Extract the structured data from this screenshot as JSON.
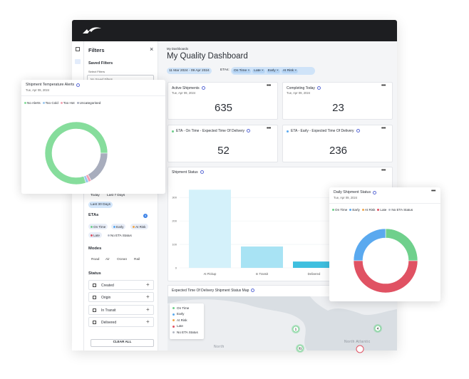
{
  "sidebar": {
    "title": "Filters",
    "close": "×",
    "saved_filters": "Saved Filters",
    "select_label": "Select Filters",
    "select_placeholder": "No Saved Filters",
    "date_options": [
      "Today",
      "Last 7 Days",
      "Last 30 Days"
    ],
    "etas": {
      "title": "ETAs",
      "count": 4,
      "options": [
        "On Time",
        "Early",
        "At Risk",
        "Late",
        "No ETA Status"
      ],
      "colors": [
        "#6fd08c",
        "#5aa9ef",
        "#f0a64a",
        "#e05263",
        "#b4b9c4"
      ]
    },
    "modes": {
      "title": "Modes",
      "options": [
        "Road",
        "Air",
        "Ocean",
        "Rail"
      ]
    },
    "status": {
      "title": "Status",
      "options": [
        "Created",
        "Origin",
        "In Transit",
        "Delivered"
      ]
    },
    "clear": "CLEAR ALL"
  },
  "header": {
    "breadcrumb": "My Dashboards",
    "title": "My Quality Dashboard"
  },
  "filters": {
    "date": "11 Mar 2024 - 09 Apr 2024",
    "etas_label": "ETAs:",
    "etas": [
      "On Time",
      "Late",
      "Early",
      "At Risk"
    ]
  },
  "cards": [
    {
      "title": "Active Shipments",
      "date": "Tue, Apr 09, 2024",
      "value": 635
    },
    {
      "title": "Completing Today",
      "date": "Tue, Apr 09, 2024",
      "value": 23
    },
    {
      "title": "ETA - On Time - Expected Time Of Delivery",
      "color": "#6fd08c",
      "value": 52
    },
    {
      "title": "ETA - Early - Expected Time Of Delivery",
      "color": "#5aa9ef",
      "value": 236
    }
  ],
  "chart_data": [
    {
      "type": "bar",
      "title": "Shipment Status",
      "categories": [
        "At Pickup",
        "In Transit",
        "Delivered"
      ],
      "values": [
        333,
        91,
        27
      ],
      "colors": [
        "#d4f1fa",
        "#a8e3f4",
        "#3fbfdf"
      ],
      "ylim": [
        0,
        340
      ],
      "yticks": [
        0,
        100,
        200,
        300
      ],
      "grid": true
    },
    {
      "type": "pie",
      "donut": true,
      "title": "Daily Shipment Status",
      "subtitle": "Tue, Apr 09, 2024",
      "categories": [
        "On Time",
        "Early",
        "At Risk",
        "Late",
        "No ETA Status"
      ],
      "values": [
        25,
        25,
        0,
        50,
        0
      ],
      "colors": [
        "#6fd08c",
        "#5aa9ef",
        "#f0a64a",
        "#e05263",
        "#b4b9c4"
      ]
    },
    {
      "type": "pie",
      "donut": true,
      "title": "Shipment Temperature Alerts",
      "subtitle": "Tue, Apr 09, 2024",
      "categories": [
        "No Alerts",
        "Too Cold",
        "Too Hot",
        "Uncategorised"
      ],
      "values": [
        80,
        1.5,
        1.5,
        17
      ],
      "colors": [
        "#86dd9c",
        "#9cc8ef",
        "#f2a2b3",
        "#a8adbd"
      ]
    }
  ],
  "map": {
    "title": "Expected Time Of Delivery Shipment Status Map",
    "legend": [
      "On Time",
      "Early",
      "At Risk",
      "Late",
      "No ETA Status"
    ],
    "colors": [
      "#6fd08c",
      "#5aa9ef",
      "#f0a64a",
      "#e05263",
      "#b4b9c4"
    ],
    "labels": [
      "North",
      "North Atlantic"
    ],
    "clusters": [
      1,
      4,
      31
    ]
  }
}
